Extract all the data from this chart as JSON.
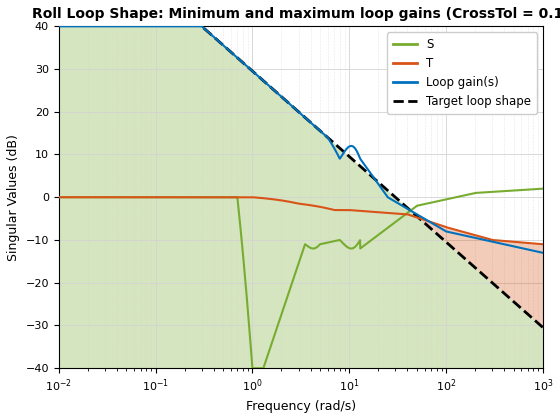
{
  "title": "Roll Loop Shape: Minimum and maximum loop gains (CrossTol = 0.1)",
  "xlabel": "Frequency (rad/s)",
  "ylabel": "Singular Values (dB)",
  "S_color": "#77ac30",
  "T_color": "#d95319",
  "L_color": "#0072bd",
  "target_color": "#000000",
  "S_bound_fill_color": "#77ac30",
  "T_bound_fill_color": "#d95319",
  "S_bound_fill_alpha": 0.3,
  "T_bound_fill_alpha": 0.3,
  "title_fontsize": 10,
  "label_fontsize": 9,
  "grid_color": "#d3d3d3",
  "target_slope_dBdec": -20,
  "target_ref_freq": 0.3,
  "target_ref_dB": 40
}
